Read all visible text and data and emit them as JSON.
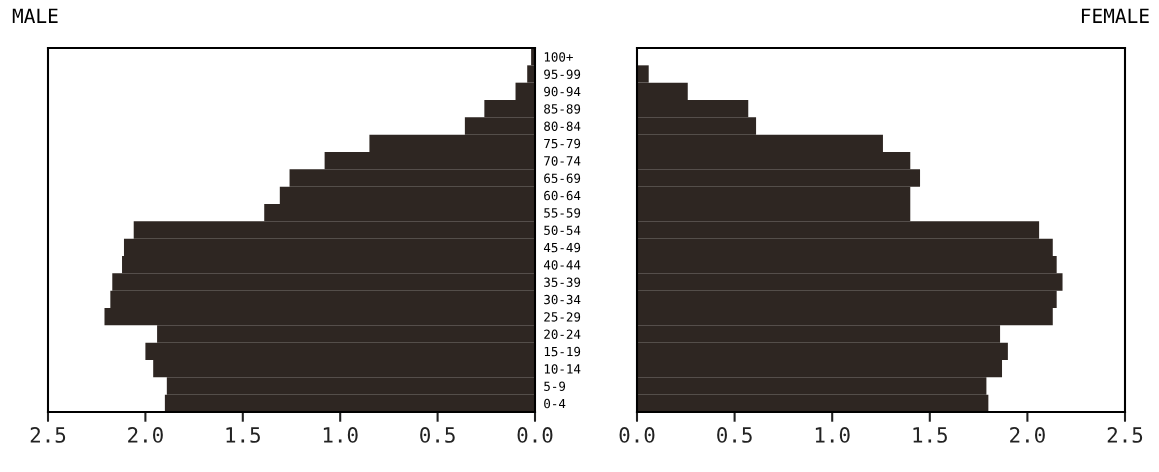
{
  "chart_data": [
    {
      "type": "bar",
      "orientation": "horizontal",
      "title": "MALE",
      "categories": [
        "100+",
        "95-99",
        "90-94",
        "85-89",
        "80-84",
        "75-79",
        "70-74",
        "65-69",
        "60-64",
        "55-59",
        "50-54",
        "45-49",
        "40-44",
        "35-39",
        "30-34",
        "25-29",
        "20-24",
        "15-19",
        "10-14",
        "5-9",
        "0-4"
      ],
      "series": [
        {
          "color": "#2e2622",
          "values": [
            0.02,
            0.04,
            0.1,
            0.26,
            0.36,
            0.85,
            1.08,
            1.26,
            1.31,
            1.39,
            2.06,
            2.11,
            2.12,
            2.17,
            2.18,
            2.21,
            1.94,
            2.0,
            1.96,
            1.89,
            1.9
          ]
        }
      ],
      "xlim": [
        2.5,
        0.0
      ],
      "xticks": [
        {
          "value": 2.5,
          "label": "2.5"
        },
        {
          "value": 2.0,
          "label": "2.0"
        },
        {
          "value": 1.5,
          "label": "1.5"
        },
        {
          "value": 1.0,
          "label": "1.0"
        },
        {
          "value": 0.5,
          "label": "0.5"
        },
        {
          "value": 0.0,
          "label": "0.0"
        }
      ],
      "grid": false,
      "legend": false
    },
    {
      "type": "bar",
      "orientation": "horizontal",
      "title": "FEMALE",
      "categories": [
        null,
        null,
        null,
        null,
        null,
        null,
        null,
        null,
        null,
        null,
        null,
        null,
        null,
        null,
        null,
        null,
        null,
        null,
        null,
        null,
        null
      ],
      "series": [
        {
          "color": "#2e2622",
          "values": [
            0.0,
            0.06,
            0.26,
            0.57,
            0.61,
            1.26,
            1.4,
            1.45,
            1.4,
            1.4,
            2.06,
            2.13,
            2.15,
            2.18,
            2.15,
            2.13,
            1.86,
            1.9,
            1.87,
            1.79,
            1.8
          ]
        }
      ],
      "xlim": [
        0.0,
        2.5
      ],
      "xticks": [
        {
          "value": 0.0,
          "label": "0.0"
        },
        {
          "value": 0.5,
          "label": "0.5"
        },
        {
          "value": 1.0,
          "label": "1.0"
        },
        {
          "value": 1.5,
          "label": "1.5"
        },
        {
          "value": 2.0,
          "label": "2.0"
        },
        {
          "value": 2.5,
          "label": "2.5"
        }
      ],
      "tick_labels": "x",
      "grid": false,
      "legend": false
    }
  ]
}
